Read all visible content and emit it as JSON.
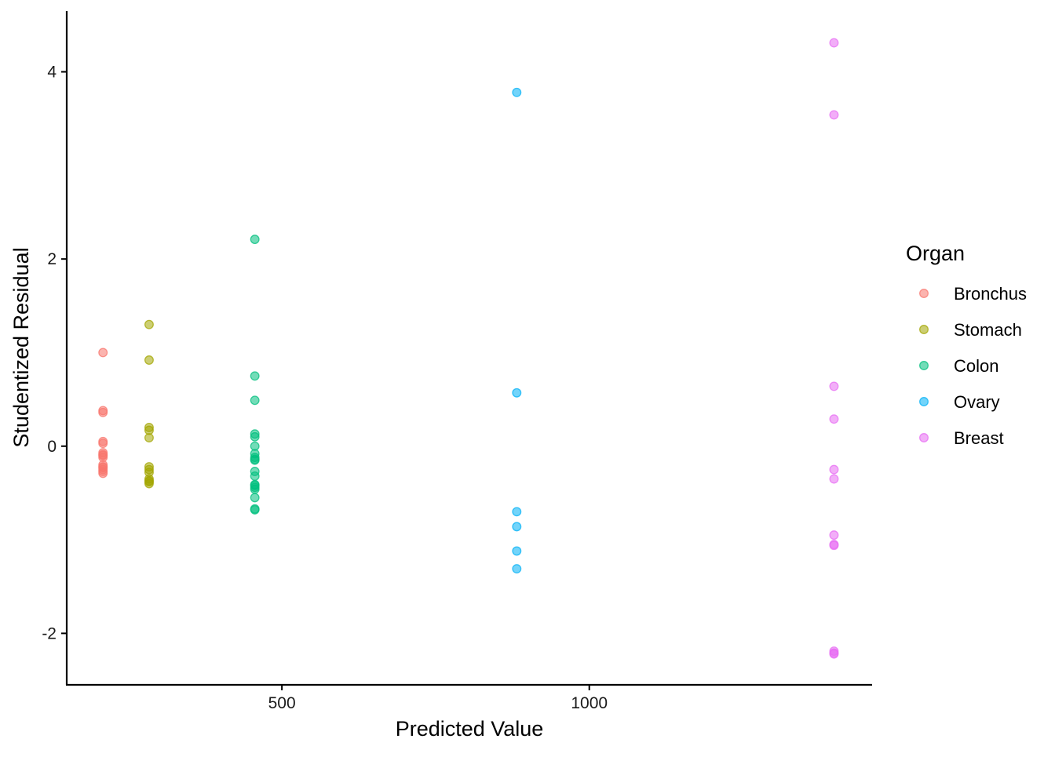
{
  "chart_data": {
    "type": "scatter",
    "xlabel": "Predicted Value",
    "ylabel": "Studentized Residual",
    "xlim": [
      150,
      1460
    ],
    "ylim": [
      -2.55,
      4.65
    ],
    "x_ticks": [
      500,
      1000
    ],
    "y_ticks": [
      -2,
      0,
      2,
      4
    ],
    "grid": false,
    "legend": {
      "title": "Organ",
      "placement": "right"
    },
    "series": [
      {
        "name": "Bronchus",
        "color": "#F8766D",
        "x": [
          209,
          209,
          209,
          209,
          209,
          209,
          209,
          209,
          209,
          209,
          209,
          209,
          209,
          209,
          209
        ],
        "y": [
          1.0,
          0.38,
          0.36,
          0.05,
          0.03,
          -0.07,
          -0.09,
          -0.1,
          -0.12,
          -0.2,
          -0.22,
          -0.23,
          -0.25,
          -0.27,
          -0.29
        ]
      },
      {
        "name": "Stomach",
        "color": "#A3A500",
        "x": [
          284,
          284,
          284,
          284,
          284,
          284,
          284,
          284,
          284,
          284,
          284,
          284
        ],
        "y": [
          1.3,
          0.92,
          0.2,
          0.17,
          0.09,
          -0.22,
          -0.25,
          -0.28,
          -0.35,
          -0.37,
          -0.38,
          -0.4
        ]
      },
      {
        "name": "Colon",
        "color": "#00BF7D",
        "x": [
          456,
          456,
          456,
          456,
          456,
          456,
          456,
          456,
          456,
          456,
          456,
          456,
          456,
          456,
          456,
          456,
          456,
          456,
          456
        ],
        "y": [
          2.21,
          0.75,
          0.49,
          0.13,
          0.1,
          0.0,
          -0.08,
          -0.12,
          -0.14,
          -0.15,
          -0.27,
          -0.32,
          -0.41,
          -0.42,
          -0.44,
          -0.46,
          -0.55,
          -0.67,
          -0.68
        ]
      },
      {
        "name": "Ovary",
        "color": "#00B0F6",
        "x": [
          882,
          882,
          882,
          882,
          882,
          882
        ],
        "y": [
          3.78,
          0.57,
          -0.7,
          -0.86,
          -1.12,
          -1.31
        ]
      },
      {
        "name": "Breast",
        "color": "#E76BF3",
        "x": [
          1398,
          1398,
          1398,
          1398,
          1398,
          1398,
          1398,
          1398,
          1398,
          1398,
          1398,
          1398
        ],
        "y": [
          4.31,
          3.54,
          0.64,
          0.29,
          -0.25,
          -0.35,
          -0.95,
          -1.05,
          -1.06,
          -2.19,
          -2.21,
          -2.22
        ]
      }
    ]
  }
}
